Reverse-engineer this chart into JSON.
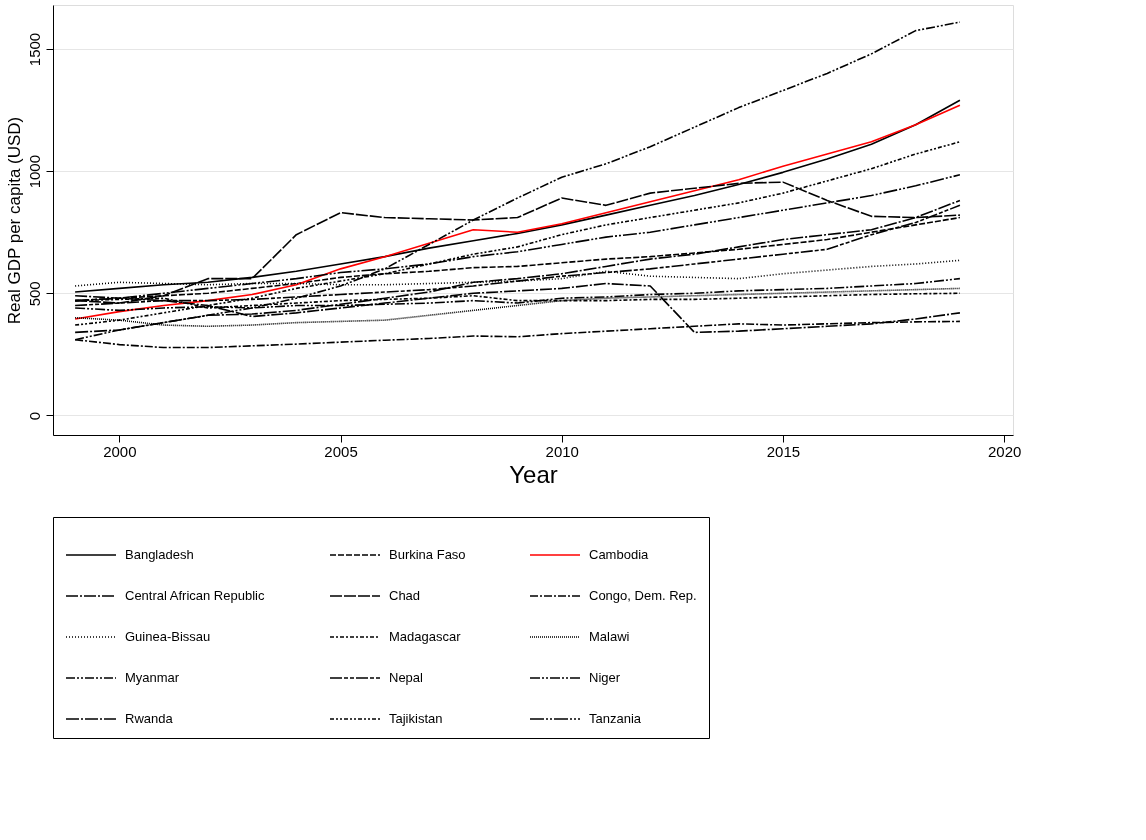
{
  "chart_data": {
    "type": "line",
    "xlabel": "Year",
    "ylabel": "Real GDP per capita (USD)",
    "x": [
      1999,
      2000,
      2001,
      2002,
      2003,
      2004,
      2005,
      2006,
      2007,
      2008,
      2009,
      2010,
      2011,
      2012,
      2013,
      2014,
      2015,
      2016,
      2017,
      2018,
      2019
    ],
    "xlim": [
      1998.5,
      2020.2
    ],
    "xticks": [
      2000,
      2005,
      2010,
      2015,
      2020
    ],
    "ylim": [
      -80,
      1680
    ],
    "yticks": [
      0,
      500,
      1000,
      1500
    ],
    "grid": "y",
    "legend": "bottom",
    "series": [
      {
        "name": "Bangladesh",
        "color": "#000000",
        "line_style": "solid",
        "values": [
          505,
          520,
          535,
          545,
          565,
          590,
          620,
          650,
          685,
          715,
          745,
          780,
          820,
          860,
          900,
          945,
          995,
          1050,
          1110,
          1190,
          1290
        ]
      },
      {
        "name": "Burkina Faso",
        "color": "#000000",
        "line_style": "dashed",
        "values": [
          470,
          480,
          490,
          500,
          520,
          540,
          565,
          580,
          590,
          605,
          610,
          625,
          640,
          650,
          665,
          680,
          700,
          720,
          750,
          780,
          810
        ]
      },
      {
        "name": "Cambodia",
        "color": "#ff0000",
        "line_style": "solid",
        "values": [
          395,
          425,
          450,
          470,
          495,
          535,
          600,
          650,
          705,
          760,
          750,
          785,
          830,
          875,
          920,
          965,
          1020,
          1070,
          1120,
          1190,
          1270
        ]
      },
      {
        "name": "Central African Republic",
        "color": "#000000",
        "line_style": "longdashdot",
        "values": [
          490,
          480,
          470,
          450,
          405,
          420,
          440,
          460,
          480,
          500,
          510,
          520,
          540,
          530,
          340,
          345,
          355,
          365,
          375,
          395,
          420
        ]
      },
      {
        "name": "Chad",
        "color": "#000000",
        "line_style": "longdash",
        "values": [
          470,
          460,
          490,
          560,
          560,
          740,
          830,
          810,
          805,
          800,
          810,
          890,
          860,
          910,
          930,
          950,
          955,
          880,
          815,
          810,
          820
        ]
      },
      {
        "name": "Congo, Dem. Rep.",
        "color": "#000000",
        "line_style": "dashdot",
        "values": [
          310,
          290,
          278,
          278,
          285,
          292,
          300,
          308,
          315,
          325,
          322,
          335,
          345,
          355,
          365,
          375,
          370,
          375,
          380,
          383,
          385
        ]
      },
      {
        "name": "Guinea-Bissau",
        "color": "#000000",
        "line_style": "dotted",
        "values": [
          530,
          545,
          540,
          535,
          540,
          540,
          535,
          535,
          540,
          545,
          550,
          560,
          590,
          570,
          565,
          560,
          580,
          595,
          610,
          620,
          635
        ]
      },
      {
        "name": "Madagascar",
        "color": "#000000",
        "line_style": "shortdashdot",
        "values": [
          470,
          475,
          480,
          440,
          450,
          460,
          470,
          475,
          480,
          490,
          470,
          470,
          470,
          475,
          475,
          480,
          485,
          490,
          495,
          498,
          500
        ]
      },
      {
        "name": "Malawi",
        "color": "#000000",
        "line_style": "densedotted",
        "values": [
          400,
          390,
          370,
          365,
          370,
          380,
          385,
          390,
          410,
          430,
          450,
          470,
          480,
          485,
          490,
          495,
          500,
          505,
          510,
          515,
          520
        ]
      },
      {
        "name": "Myanmar",
        "color": "#000000",
        "line_style": "dashdotdot",
        "values": [
          310,
          350,
          380,
          410,
          440,
          480,
          530,
          600,
          700,
          800,
          890,
          975,
          1030,
          1100,
          1180,
          1260,
          1330,
          1400,
          1480,
          1575,
          1610
        ]
      },
      {
        "name": "Nepal",
        "color": "#000000",
        "line_style": "longdashshort",
        "values": [
          450,
          460,
          470,
          470,
          475,
          485,
          495,
          505,
          515,
          530,
          550,
          570,
          585,
          600,
          620,
          640,
          660,
          680,
          740,
          790,
          860
        ]
      },
      {
        "name": "Niger",
        "color": "#000000",
        "line_style": "longdashdotdot",
        "values": [
          440,
          430,
          440,
          445,
          440,
          450,
          450,
          455,
          460,
          470,
          460,
          480,
          485,
          495,
          500,
          510,
          515,
          520,
          530,
          540,
          560
        ]
      },
      {
        "name": "Rwanda",
        "color": "#000000",
        "line_style": "longdashdot2",
        "values": [
          340,
          350,
          380,
          410,
          415,
          430,
          455,
          480,
          505,
          545,
          560,
          580,
          610,
          640,
          660,
          690,
          720,
          740,
          760,
          810,
          880
        ]
      },
      {
        "name": "Tajikistan",
        "color": "#000000",
        "line_style": "shortdashdotdot",
        "values": [
          370,
          390,
          420,
          450,
          480,
          520,
          550,
          580,
          620,
          660,
          690,
          740,
          780,
          810,
          840,
          870,
          910,
          960,
          1010,
          1070,
          1120
        ]
      },
      {
        "name": "Tanzania",
        "color": "#000000",
        "line_style": "longdashdotdot2",
        "values": [
          470,
          480,
          500,
          520,
          540,
          560,
          585,
          600,
          620,
          650,
          670,
          700,
          730,
          750,
          780,
          810,
          840,
          870,
          900,
          940,
          985
        ]
      }
    ]
  }
}
